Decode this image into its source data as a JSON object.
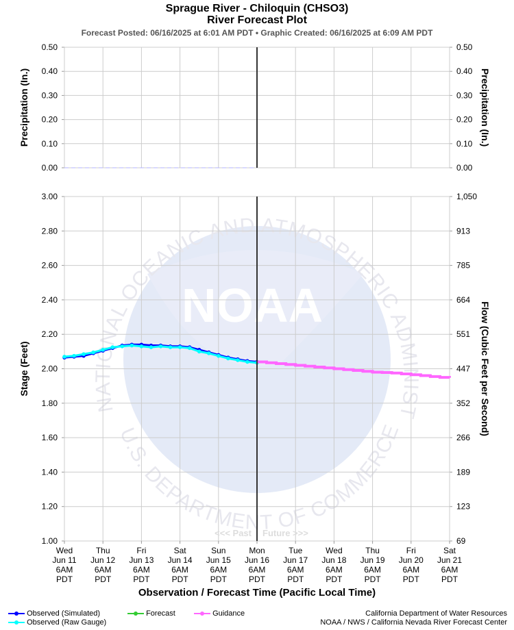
{
  "header": {
    "title": "Sprague River - Chiloquin (CHSO3)",
    "subtitle": "River Forecast Plot",
    "posted": "Forecast Posted: 06/16/2025 at 6:01 AM PDT  •  Graphic Created: 06/16/2025 at 6:09 AM PDT"
  },
  "watermark": {
    "logo_text": "NOAA",
    "ring_text": "NATIONAL OCEANIC AND ATMOSPHERIC ADMINISTRATION",
    "ring_text_bottom": "U.S. DEPARTMENT OF COMMERCE",
    "past_label": "<<< Past",
    "future_label": "Future >>>"
  },
  "legend": {
    "observed_simulated": "Observed (Simulated)",
    "observed_raw": "Observed (Raw Gauge)",
    "forecast": "Forecast",
    "guidance": "Guidance"
  },
  "credits": {
    "line1": "California Department of Water Resources",
    "line2": "NOAA / NWS / California Nevada River Forecast Center"
  },
  "colors": {
    "observed_simulated": "#0000ff",
    "observed_raw": "#00ffff",
    "forecast": "#33cc33",
    "guidance": "#ff66ff",
    "now_line": "#333333",
    "grid": "#cccccc"
  },
  "chart_data": [
    {
      "type": "line",
      "name": "precipitation",
      "ylabel_left": "Precipitation (In.)",
      "ylabel_right": "Precipitation (In.)",
      "ylim": [
        0,
        0.5
      ],
      "yticks_left": [
        "0.00",
        "0.10",
        "0.20",
        "0.30",
        "0.40",
        "0.50"
      ],
      "yticks_right": [
        "0.00",
        "0.10",
        "0.20",
        "0.30",
        "0.40",
        "0.50"
      ],
      "series": [
        {
          "name": "Precipitation",
          "x_days": [
            0,
            5
          ],
          "values": [
            0,
            0
          ]
        }
      ],
      "grid": true
    },
    {
      "type": "line",
      "name": "stage",
      "xlabel": "Observation / Forecast Time (Pacific Local Time)",
      "ylabel_left": "Stage (Feet)",
      "ylabel_right": "Flow (Cubic Feet per Second)",
      "ylim": [
        1.0,
        3.0
      ],
      "yticks_left": [
        "1.00",
        "1.20",
        "1.40",
        "1.60",
        "1.80",
        "2.00",
        "2.20",
        "2.40",
        "2.60",
        "2.80",
        "3.00"
      ],
      "yticks_right": [
        "69",
        "123",
        "189",
        "266",
        "352",
        "447",
        "551",
        "664",
        "785",
        "913",
        "1,050"
      ],
      "x_ticks": [
        [
          "Wed",
          "Jun 11",
          "6AM",
          "PDT"
        ],
        [
          "Thu",
          "Jun 12",
          "6AM",
          "PDT"
        ],
        [
          "Fri",
          "Jun 13",
          "6AM",
          "PDT"
        ],
        [
          "Sat",
          "Jun 14",
          "6AM",
          "PDT"
        ],
        [
          "Sun",
          "Jun 15",
          "6AM",
          "PDT"
        ],
        [
          "Mon",
          "Jun 16",
          "6AM",
          "PDT"
        ],
        [
          "Tue",
          "Jun 17",
          "6AM",
          "PDT"
        ],
        [
          "Wed",
          "Jun 18",
          "6AM",
          "PDT"
        ],
        [
          "Thu",
          "Jun 19",
          "6AM",
          "PDT"
        ],
        [
          "Fri",
          "Jun 20",
          "6AM",
          "PDT"
        ],
        [
          "Sat",
          "Jun 21",
          "6AM",
          "PDT"
        ]
      ],
      "now_x_day": 5,
      "series": [
        {
          "name": "Observed (Simulated)",
          "x_days": [
            0,
            0.25,
            0.5,
            0.75,
            1,
            1.25,
            1.5,
            1.75,
            2,
            2.25,
            2.5,
            2.75,
            3,
            3.25,
            3.5,
            3.75,
            4,
            4.25,
            4.5,
            4.75,
            5
          ],
          "values": [
            2.065,
            2.07,
            2.075,
            2.09,
            2.105,
            2.12,
            2.135,
            2.14,
            2.14,
            2.135,
            2.135,
            2.13,
            2.13,
            2.125,
            2.11,
            2.095,
            2.08,
            2.065,
            2.055,
            2.045,
            2.04
          ]
        },
        {
          "name": "Observed (Raw Gauge)",
          "x_days": [
            0,
            0.25,
            0.5,
            0.75,
            1,
            1.25,
            1.5,
            1.75,
            2,
            2.25,
            2.5,
            2.75,
            3,
            3.25,
            3.5,
            3.75,
            4,
            4.25,
            4.5,
            4.75,
            5
          ],
          "values": [
            2.07,
            2.075,
            2.085,
            2.095,
            2.11,
            2.125,
            2.13,
            2.135,
            2.13,
            2.125,
            2.13,
            2.125,
            2.125,
            2.12,
            2.1,
            2.09,
            2.075,
            2.06,
            2.05,
            2.04,
            2.035
          ]
        },
        {
          "name": "Guidance",
          "x_days": [
            5,
            5.25,
            5.5,
            5.75,
            6,
            6.25,
            6.5,
            6.75,
            7,
            7.25,
            7.5,
            7.75,
            8,
            8.25,
            8.5,
            8.75,
            9,
            9.25,
            9.5,
            9.75,
            10
          ],
          "values": [
            2.04,
            2.035,
            2.03,
            2.025,
            2.02,
            2.015,
            2.01,
            2.005,
            2.0,
            1.995,
            1.99,
            1.985,
            1.98,
            1.978,
            1.975,
            1.97,
            1.965,
            1.96,
            1.955,
            1.95,
            1.948
          ]
        }
      ],
      "grid": true
    }
  ]
}
